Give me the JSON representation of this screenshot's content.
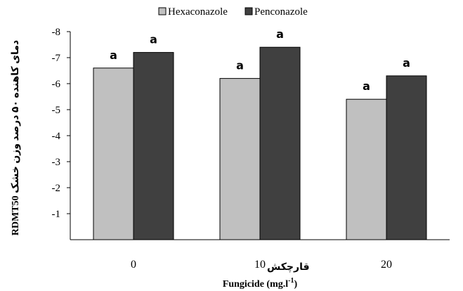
{
  "chart_data": {
    "type": "bar",
    "categories": [
      "0",
      "10",
      "20"
    ],
    "category_annotation": {
      "index": 1,
      "text": "قارچکش"
    },
    "series": [
      {
        "name": "Hexaconazole",
        "color": "#c0c0c0",
        "values": [
          -6.6,
          -6.2,
          -5.4
        ],
        "labels": [
          "a",
          "a",
          "a"
        ]
      },
      {
        "name": "Penconazole",
        "color": "#404040",
        "values": [
          -7.2,
          -7.4,
          -6.3
        ],
        "labels": [
          "a",
          "a",
          "a"
        ]
      }
    ],
    "ylim": [
      0,
      -8
    ],
    "yticks": [
      "-8",
      "-7",
      "-6",
      "-5",
      "-4",
      "-3",
      "-2",
      "-1"
    ],
    "ylabel": "RDMT50 دمای کاهنده ۵۰ درصد وزن خشک",
    "xlabel": "Fungicide (mg.l-1)",
    "legend_position": "top-center",
    "grid": false
  }
}
